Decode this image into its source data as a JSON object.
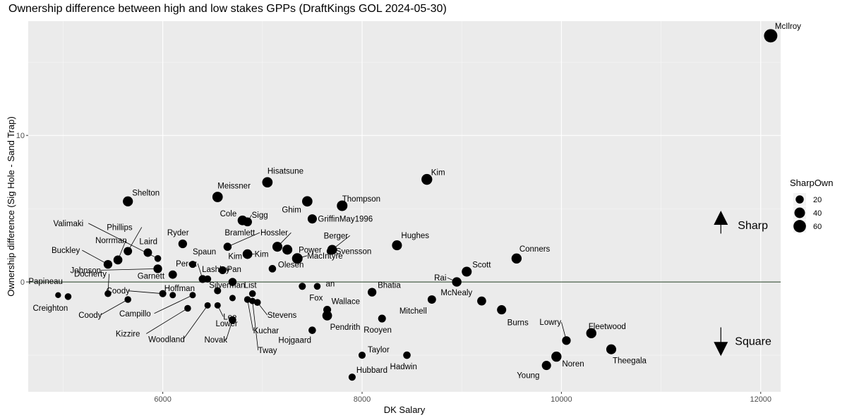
{
  "chart_data": {
    "type": "scatter",
    "title": "Ownership difference between high and low stakes GPPs (DraftKings GOL 2024-05-30)",
    "xlabel": "DK Salary",
    "ylabel": "Ownership difference (Sig Hole - Sand Trap)",
    "xlim": [
      4650,
      12200
    ],
    "ylim": [
      -7.5,
      17.8
    ],
    "x_ticks": [
      6000,
      8000,
      10000,
      12000
    ],
    "y_ticks": [
      0,
      10
    ],
    "grid": true,
    "hline": 0,
    "legend": {
      "title": "SharpOwn",
      "placement": "right",
      "entries": [
        20,
        40,
        60
      ]
    },
    "annotations": {
      "up": "Sharp",
      "down": "Square"
    },
    "points": [
      {
        "label": "McIlroy",
        "x": 12100,
        "y": 16.8,
        "size": 70
      },
      {
        "label": "Kim",
        "x": 8650,
        "y": 7.0,
        "size": 42
      },
      {
        "label": "Hisatsune",
        "x": 7050,
        "y": 6.8,
        "size": 38
      },
      {
        "label": "Meissner",
        "x": 6550,
        "y": 5.8,
        "size": 38
      },
      {
        "label": "Shelton",
        "x": 5650,
        "y": 5.5,
        "size": 35
      },
      {
        "label": "Ghim",
        "x": 7450,
        "y": 5.5,
        "size": 38
      },
      {
        "label": "Thompson",
        "x": 7800,
        "y": 5.2,
        "size": 40
      },
      {
        "label": "Cole",
        "x": 6800,
        "y": 4.2,
        "size": 32
      },
      {
        "label": "Sigg",
        "x": 6850,
        "y": 4.1,
        "size": 26
      },
      {
        "label": "GriffinMay1996",
        "x": 7500,
        "y": 4.3,
        "size": 28
      },
      {
        "label": "Hughes",
        "x": 8350,
        "y": 2.5,
        "size": 34
      },
      {
        "label": "Conners",
        "x": 9550,
        "y": 1.6,
        "size": 36
      },
      {
        "label": "Hossler",
        "x": 7150,
        "y": 2.4,
        "size": 34
      },
      {
        "label": "Power",
        "x": 7250,
        "y": 2.2,
        "size": 34
      },
      {
        "label": "Berger",
        "x": 7700,
        "y": 2.2,
        "size": 32
      },
      {
        "label": "Svensson",
        "x": 7680,
        "y": 2.1,
        "size": 14
      },
      {
        "label": "MacIntyre",
        "x": 7350,
        "y": 1.6,
        "size": 40
      },
      {
        "label": "Olesen",
        "x": 7100,
        "y": 0.9,
        "size": 16
      },
      {
        "label": "Scott",
        "x": 9050,
        "y": 0.7,
        "size": 34
      },
      {
        "label": "Rai",
        "x": 8950,
        "y": 0.0,
        "size": 30
      },
      {
        "label": "Bramlett",
        "x": 6650,
        "y": 2.4,
        "size": 20
      },
      {
        "label": "Kim",
        "x": 6850,
        "y": 1.9,
        "size": 32
      },
      {
        "label": "Kim",
        "x": 6600,
        "y": 0.8,
        "size": 18
      },
      {
        "label": "Pan",
        "x": 6700,
        "y": 0.0,
        "size": 20
      },
      {
        "label": "Spaun",
        "x": 6300,
        "y": 1.2,
        "size": 14
      },
      {
        "label": "Ryder",
        "x": 6200,
        "y": 2.6,
        "size": 24
      },
      {
        "label": "Laird",
        "x": 5850,
        "y": 2.0,
        "size": 22
      },
      {
        "label": "Phillips",
        "x": 5650,
        "y": 2.1,
        "size": 22
      },
      {
        "label": "Valimaki",
        "x": 5950,
        "y": 1.6,
        "size": 12
      },
      {
        "label": "Norrman",
        "x": 5550,
        "y": 1.5,
        "size": 26
      },
      {
        "label": "Buckley",
        "x": 5450,
        "y": 1.2,
        "size": 24
      },
      {
        "label": "Johnson",
        "x": 5950,
        "y": 0.9,
        "size": 24
      },
      {
        "label": "Garnett",
        "x": 6100,
        "y": 0.5,
        "size": 22
      },
      {
        "label": "Perez",
        "x": 6400,
        "y": 0.2,
        "size": 18
      },
      {
        "label": "Lashley",
        "x": 6450,
        "y": 0.2,
        "size": 14
      },
      {
        "label": "Docherty",
        "x": 5450,
        "y": -0.8,
        "size": 12
      },
      {
        "label": "Papineau",
        "x": 4950,
        "y": -0.9,
        "size": 8
      },
      {
        "label": "Creighton",
        "x": 5050,
        "y": -1.0,
        "size": 12
      },
      {
        "label": "Coody",
        "x": 6000,
        "y": -0.8,
        "size": 14
      },
      {
        "label": "Hoffman",
        "x": 6100,
        "y": -0.9,
        "size": 10
      },
      {
        "label": "Coody",
        "x": 5650,
        "y": -1.2,
        "size": 12
      },
      {
        "label": "Campillo",
        "x": 6300,
        "y": -0.9,
        "size": 10
      },
      {
        "label": "Silverman",
        "x": 6550,
        "y": -0.6,
        "size": 14
      },
      {
        "label": "List",
        "x": 6900,
        "y": -0.8,
        "size": 12
      },
      {
        "label": "Kizzire",
        "x": 6250,
        "y": -1.8,
        "size": 12
      },
      {
        "label": "Woodland",
        "x": 6450,
        "y": -1.6,
        "size": 10
      },
      {
        "label": "Lower",
        "x": 6700,
        "y": -1.1,
        "size": 10
      },
      {
        "label": "Lee",
        "x": 6550,
        "y": -1.6,
        "size": 10
      },
      {
        "label": "Novak",
        "x": 6700,
        "y": -2.6,
        "size": 16
      },
      {
        "label": "Kuchar",
        "x": 6850,
        "y": -1.2,
        "size": 12
      },
      {
        "label": "Tway",
        "x": 6900,
        "y": -1.3,
        "size": 10
      },
      {
        "label": "Stevens",
        "x": 6950,
        "y": -1.4,
        "size": 12
      },
      {
        "label": "Fox",
        "x": 7400,
        "y": -0.3,
        "size": 14
      },
      {
        "label": "an",
        "x": 7550,
        "y": -0.3,
        "size": 12
      },
      {
        "label": "Wallace",
        "x": 7650,
        "y": -1.9,
        "size": 18
      },
      {
        "label": "Pendrith",
        "x": 7650,
        "y": -2.3,
        "size": 32
      },
      {
        "label": "Hojgaard",
        "x": 7500,
        "y": -3.3,
        "size": 16
      },
      {
        "label": "Bhatia",
        "x": 8100,
        "y": -0.7,
        "size": 24
      },
      {
        "label": "Mitchell",
        "x": 8700,
        "y": -1.2,
        "size": 22
      },
      {
        "label": "Rooyen",
        "x": 8200,
        "y": -2.5,
        "size": 18
      },
      {
        "label": "McNealy",
        "x": 9200,
        "y": -1.3,
        "size": 26
      },
      {
        "label": "Burns",
        "x": 9400,
        "y": -1.9,
        "size": 28
      },
      {
        "label": "Taylor",
        "x": 8000,
        "y": -5.0,
        "size": 14
      },
      {
        "label": "Hadwin",
        "x": 8450,
        "y": -5.0,
        "size": 16
      },
      {
        "label": "Hubbard",
        "x": 7900,
        "y": -6.5,
        "size": 14
      },
      {
        "label": "Fleetwood",
        "x": 10300,
        "y": -3.5,
        "size": 36
      },
      {
        "label": "Lowry",
        "x": 10050,
        "y": -4.0,
        "size": 24
      },
      {
        "label": "Noren",
        "x": 9950,
        "y": -5.1,
        "size": 36
      },
      {
        "label": "Theegala",
        "x": 10500,
        "y": -4.6,
        "size": 34
      },
      {
        "label": "Young",
        "x": 9850,
        "y": -5.7,
        "size": 28
      }
    ]
  }
}
